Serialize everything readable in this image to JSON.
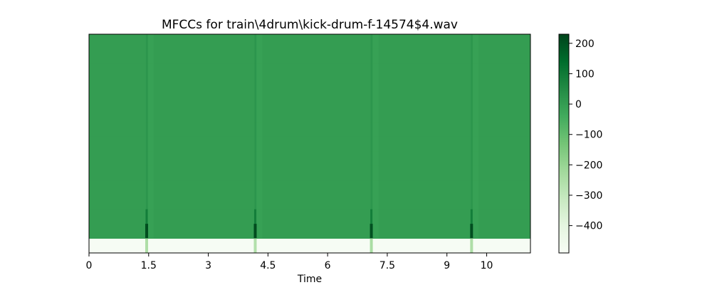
{
  "chart_data": {
    "type": "heatmap",
    "title": "MFCCs for train\\4drum\\kick-drum-f-14574$4.wav",
    "xlabel": "Time",
    "ylabel": "",
    "xlim": [
      0,
      11.1
    ],
    "x_ticks": [
      0,
      1.5,
      3,
      4.5,
      6,
      7.5,
      9,
      10
    ],
    "x_tick_labels": [
      "0",
      "1.5",
      "3",
      "4.5",
      "6",
      "7.5",
      "9",
      "10"
    ],
    "y_ticks": [],
    "colormap": "Greens",
    "colorbar": {
      "range": [
        -490,
        230
      ],
      "ticks": [
        200,
        100,
        0,
        -100,
        -200,
        -300,
        -400
      ],
      "tick_labels": [
        "200",
        "100",
        "0",
        "−100",
        "−200",
        "−300",
        "−400"
      ]
    },
    "n_coefficients": 15,
    "background_value": 0,
    "first_coefficient_value": -485,
    "onsets": [
      {
        "time": 1.45,
        "value_coef0": -250,
        "value_coef1": 210
      },
      {
        "time": 4.18,
        "value_coef0": -260,
        "value_coef1": 215
      },
      {
        "time": 7.1,
        "value_coef0": -240,
        "value_coef1": 205
      },
      {
        "time": 9.62,
        "value_coef0": -250,
        "value_coef1": 210
      }
    ]
  }
}
